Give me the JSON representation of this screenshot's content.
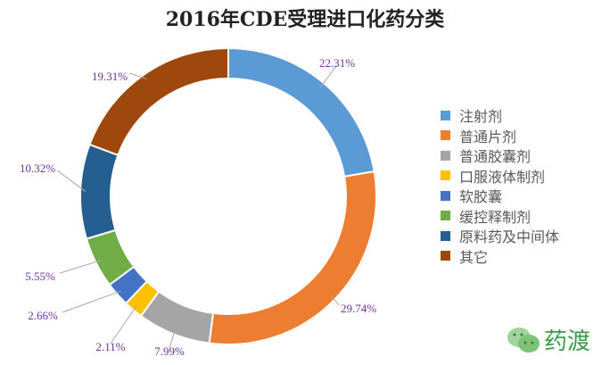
{
  "chart_data": {
    "type": "pie",
    "variant": "donut",
    "title": "2016年CDE受理进口化药分类",
    "categories": [
      "注射剂",
      "普通片剂",
      "普通胶囊剂",
      "口服液体制剂",
      "软胶囊",
      "缓控释制剂",
      "原料药及中间体",
      "其它"
    ],
    "values": [
      22.31,
      29.74,
      7.99,
      2.11,
      2.66,
      5.55,
      10.32,
      19.31
    ],
    "labels": [
      "22.31%",
      "29.74%",
      "7.99%",
      "2.11%",
      "2.66%",
      "5.55%",
      "10.32%",
      "19.31%"
    ],
    "colors": [
      "#5b9bd5",
      "#ed7d31",
      "#a5a5a5",
      "#ffc000",
      "#4472c4",
      "#70ad47",
      "#255e91",
      "#9e480e"
    ],
    "label_color": "#7030a0",
    "legend_position": "right"
  },
  "watermark": {
    "text": "药渡",
    "icon": "wechat-icon",
    "color": "#3a9a4a"
  }
}
